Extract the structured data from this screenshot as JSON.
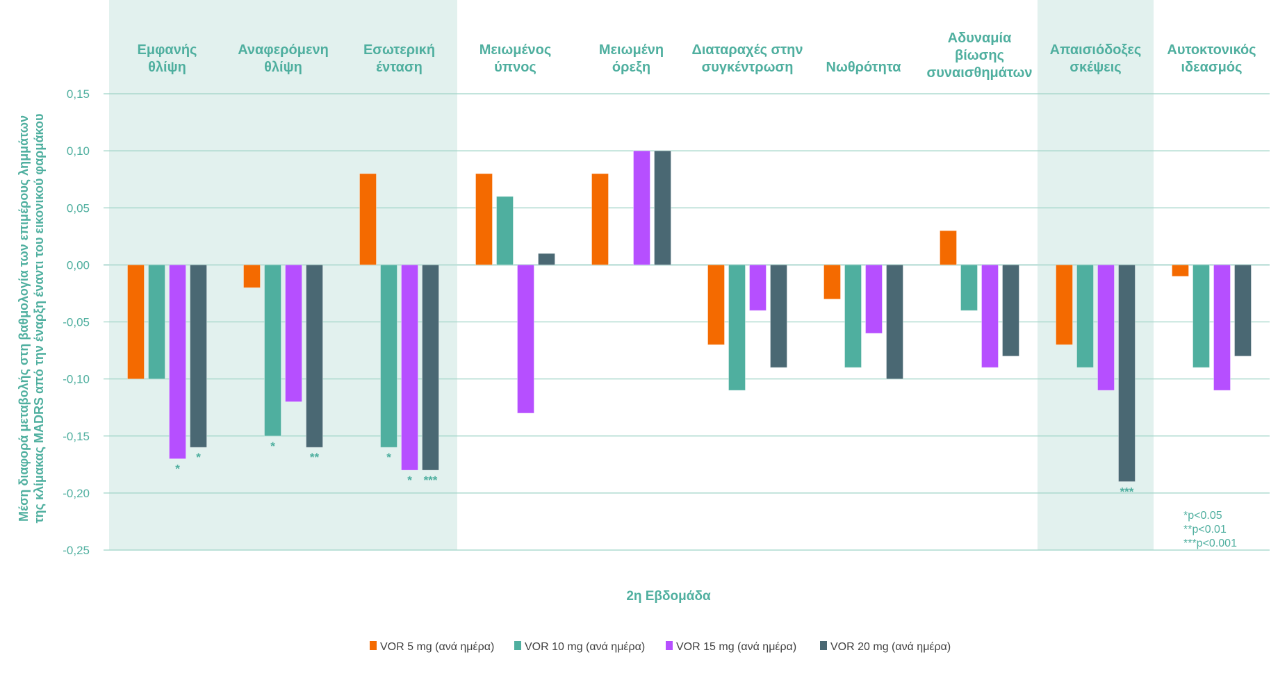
{
  "chart_data": {
    "type": "bar",
    "title": "",
    "xlabel": "2η Εβδομάδα",
    "ylabel": [
      "Μέση διαφορά μεταβολής στη βαθμολογία των επιμέρους λημμάτων",
      "της κλίμακας MADRS από την έναρξη έναντι του εικονικού φαρμάκου"
    ],
    "ylim": [
      -0.25,
      0.15
    ],
    "yticks": [
      0.15,
      0.1,
      0.05,
      0.0,
      -0.05,
      -0.1,
      -0.15,
      -0.2,
      -0.25
    ],
    "ytick_labels": [
      "0,15",
      "0,10",
      "0,05",
      "0,00",
      "-0,05",
      "-0,10",
      "-0,15",
      "-0,20",
      "-0,25"
    ],
    "grid": true,
    "legend_position": "bottom",
    "categories": [
      [
        "Εμφανής",
        "θλίψη"
      ],
      [
        "Αναφερόμενη",
        "θλίψη"
      ],
      [
        "Εσωτερική",
        "ένταση"
      ],
      [
        "Μειωμένος",
        "ύπνος"
      ],
      [
        "Μειωμένη",
        "όρεξη"
      ],
      [
        "Διαταραχές στην",
        "συγκέντρωση"
      ],
      [
        "Νωθρότητα"
      ],
      [
        "Αδυναμία",
        "βίωσης",
        "συναισθημάτων"
      ],
      [
        "Απαισιόδοξες",
        "σκέψεις"
      ],
      [
        "Αυτοκτονικός",
        "ιδεασμός"
      ]
    ],
    "highlighted_categories": [
      0,
      1,
      2,
      8
    ],
    "series": [
      {
        "name": "VOR 5 mg (ανά ημέρα)",
        "color": "#F46A00",
        "values": [
          -0.1,
          -0.02,
          0.08,
          0.08,
          0.08,
          -0.07,
          -0.03,
          0.03,
          -0.07,
          -0.01
        ],
        "significance": [
          "",
          "",
          "",
          "",
          "",
          "",
          "",
          "",
          "",
          ""
        ]
      },
      {
        "name": "VOR 10 mg (ανά ημέρα)",
        "color": "#4FAF9F",
        "values": [
          -0.1,
          -0.15,
          -0.16,
          0.06,
          0.0,
          -0.11,
          -0.09,
          -0.04,
          -0.09,
          -0.09
        ],
        "significance": [
          "",
          "*",
          "*",
          "",
          "",
          "",
          "",
          "",
          "",
          ""
        ]
      },
      {
        "name": "VOR 15 mg (ανά ημέρα)",
        "color": "#B64FFF",
        "values": [
          -0.17,
          -0.12,
          -0.18,
          -0.13,
          0.1,
          -0.04,
          -0.06,
          -0.09,
          -0.11,
          -0.11
        ],
        "significance": [
          "*",
          "",
          "*",
          "",
          "",
          "",
          "",
          "",
          "",
          ""
        ]
      },
      {
        "name": "VOR 20 mg (ανά ημέρα)",
        "color": "#4A6873",
        "values": [
          -0.16,
          -0.16,
          -0.18,
          0.01,
          0.1,
          -0.09,
          -0.1,
          -0.08,
          -0.19,
          -0.08
        ],
        "significance": [
          "*",
          "**",
          "***",
          "",
          "",
          "",
          "",
          "",
          "***",
          ""
        ]
      }
    ],
    "annotations": [
      "*p<0.05",
      "**p<0.01",
      "***p<0.001"
    ]
  },
  "colors": {
    "text": "#4FAF9F",
    "grid": "#9ED3C6",
    "band": "#E2F1EE"
  }
}
